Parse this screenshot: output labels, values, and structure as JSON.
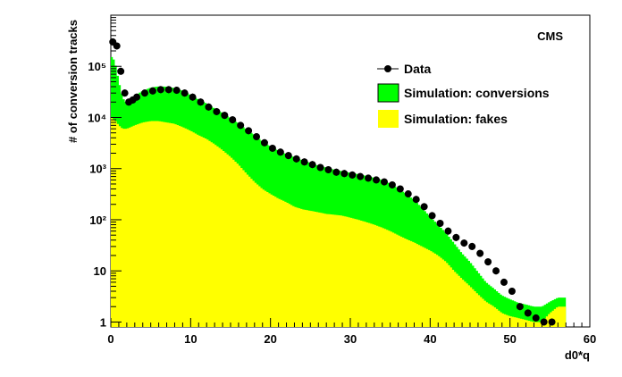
{
  "chart_data": {
    "type": "histogram",
    "label": "CMS",
    "xlabel": "d0*q",
    "ylabel": "# of conversion tracks",
    "xlim": [
      0,
      60
    ],
    "ylim": [
      0.8,
      1000000
    ],
    "yscale": "log",
    "x_tick_labels": [
      "0",
      "10",
      "20",
      "30",
      "40",
      "50",
      "60"
    ],
    "y_tick_labels": [
      "1",
      "10",
      "10²",
      "10³",
      "10⁴",
      "10⁵"
    ],
    "legend": {
      "position": "top-right",
      "entries": [
        {
          "label": "Data",
          "style": "marker",
          "color": "#000000"
        },
        {
          "label": "Simulation: conversions",
          "style": "fill",
          "color": "#00ff00"
        },
        {
          "label": "Simulation: fakes",
          "style": "fill",
          "color": "#ffff00"
        }
      ]
    },
    "x": [
      0,
      0.5,
      1,
      1.5,
      2,
      2.5,
      3,
      4,
      5,
      6,
      7,
      8,
      9,
      10,
      11,
      12,
      13,
      14,
      15,
      16,
      17,
      18,
      19,
      20,
      21,
      22,
      23,
      24,
      25,
      26,
      27,
      28,
      29,
      30,
      31,
      32,
      33,
      34,
      35,
      36,
      37,
      38,
      39,
      40,
      41,
      42,
      43,
      44,
      45,
      46,
      47,
      48,
      49,
      50,
      51,
      52,
      53,
      54,
      55,
      56,
      57
    ],
    "series": [
      {
        "name": "Data",
        "values": [
          300000,
          250000,
          80000,
          30000,
          20000,
          22000,
          25000,
          30000,
          33000,
          35000,
          35000,
          34000,
          30000,
          25000,
          20000,
          16000,
          13000,
          11000,
          9000,
          7000,
          5500,
          4200,
          3200,
          2500,
          2100,
          1800,
          1550,
          1350,
          1200,
          1050,
          950,
          850,
          800,
          750,
          700,
          650,
          600,
          550,
          480,
          400,
          320,
          250,
          180,
          120,
          85,
          60,
          45,
          35,
          30,
          22,
          15,
          10,
          6,
          4,
          2,
          1.5,
          1.2,
          1,
          1,
          0,
          0
        ]
      },
      {
        "name": "Simulation: conversions",
        "values": [
          150000,
          120000,
          45000,
          18000,
          13000,
          16000,
          20000,
          25000,
          30000,
          32000,
          32000,
          30000,
          27000,
          22000,
          18000,
          15000,
          12000,
          10000,
          8000,
          6500,
          5000,
          4000,
          3000,
          2400,
          2000,
          1700,
          1500,
          1300,
          1150,
          1000,
          920,
          830,
          770,
          720,
          680,
          630,
          580,
          530,
          450,
          360,
          280,
          210,
          140,
          90,
          60,
          40,
          25,
          15,
          10,
          6,
          3.5,
          2.5,
          1.8,
          1.5,
          1.2,
          1.1,
          1,
          1,
          1,
          1,
          1
        ]
      },
      {
        "name": "Simulation: fakes",
        "values": [
          10000,
          9000,
          7000,
          6000,
          6000,
          6500,
          7000,
          8000,
          8500,
          8500,
          8000,
          7500,
          6500,
          5500,
          4500,
          3800,
          3000,
          2300,
          1700,
          1200,
          800,
          550,
          400,
          320,
          260,
          220,
          180,
          160,
          150,
          140,
          130,
          125,
          120,
          110,
          100,
          90,
          80,
          70,
          60,
          50,
          42,
          36,
          30,
          25,
          20,
          15,
          10,
          7,
          5,
          3.5,
          2.5,
          2,
          1.5,
          1.3,
          1.2,
          1.1,
          1,
          1,
          1.5,
          2,
          2
        ]
      }
    ]
  }
}
